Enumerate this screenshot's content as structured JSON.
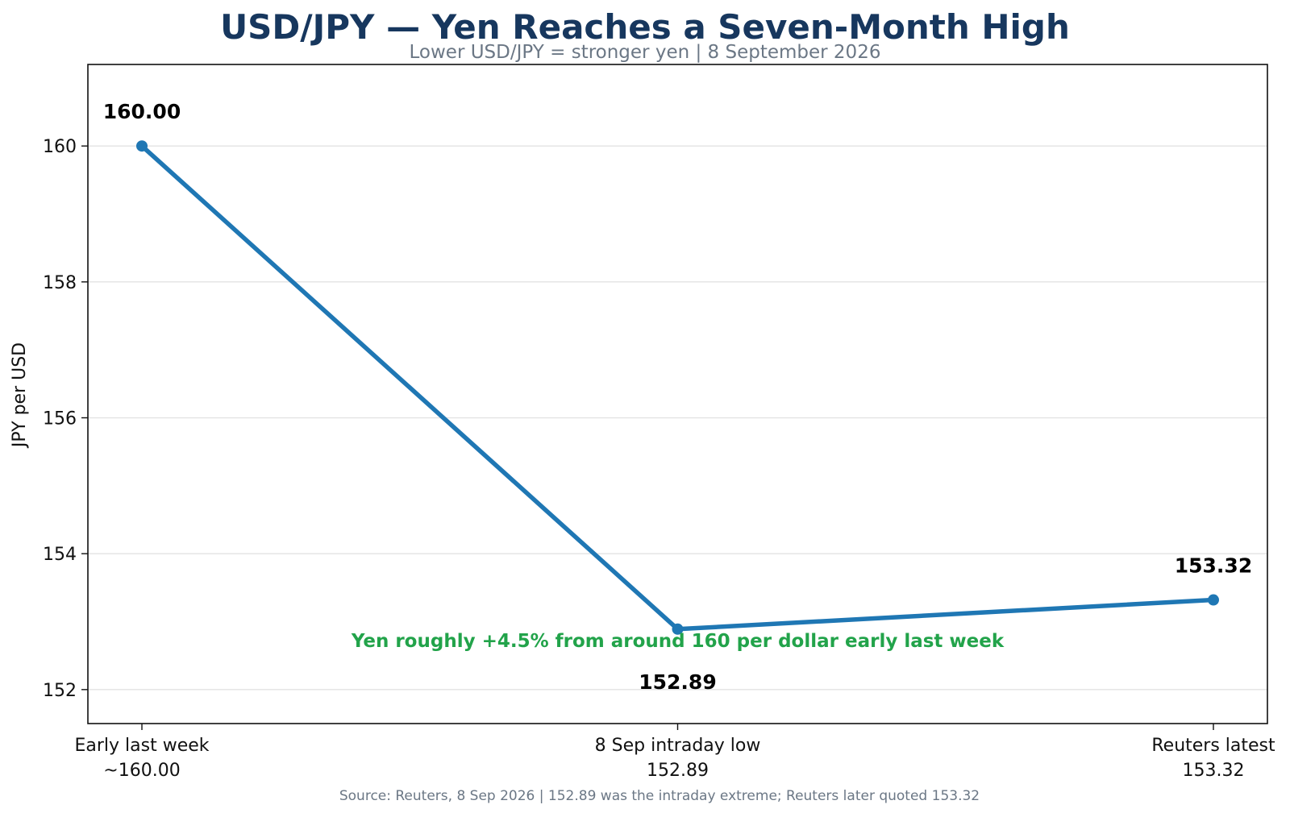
{
  "chart_data": {
    "type": "line",
    "title": "USD/JPY — Yen Reaches a Seven-Month High",
    "subtitle": "Lower USD/JPY = stronger yen | 8 September 2026",
    "ylabel": "JPY per USD",
    "xlabel": "",
    "ylim": [
      151.5,
      161.2
    ],
    "yticks": [
      152,
      154,
      156,
      158,
      160
    ],
    "grid": "horizontal",
    "categories": [
      [
        "Early last week",
        "~160.00"
      ],
      [
        "8 Sep intraday low",
        "152.89"
      ],
      [
        "Reuters latest",
        "153.32"
      ]
    ],
    "series": [
      {
        "color": "#1f77b4",
        "values": [
          160.0,
          152.89,
          153.32
        ],
        "labels": [
          "160.00",
          "152.89",
          "153.32"
        ],
        "label_positions": [
          "above",
          "below",
          "above"
        ]
      }
    ],
    "annotation": {
      "text": "Yen roughly +4.5% from around 160 per dollar early last week",
      "x": 1,
      "y": 152.72,
      "color": "#22a34a"
    },
    "footer": "Source: Reuters, 8 Sep 2026 | 152.89 was the intraday extreme; Reuters later quoted 153.32"
  }
}
